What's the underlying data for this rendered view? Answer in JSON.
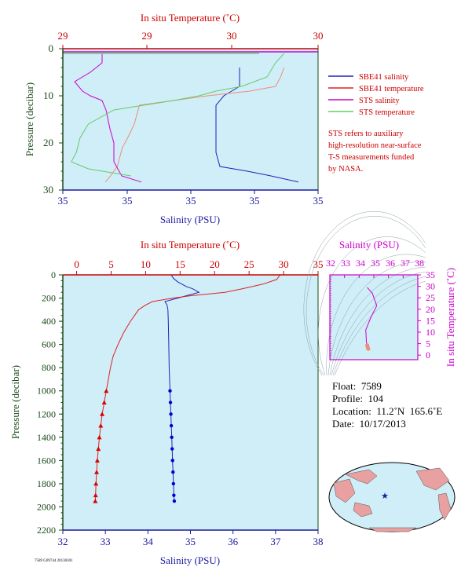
{
  "colors": {
    "plot_bg": "#cfeef7",
    "salinity_blue": "#2222bb",
    "temperature_red": "#dd2222",
    "sts_salinity": "#cc00cc",
    "sts_temperature": "#66cc66",
    "sts_temp_light": "#f08c7c",
    "axis_red": "#cc0000",
    "axis_blue": "#1a1aa0",
    "axis_magenta": "#cc00cc",
    "axis_green": "#1a4a1a"
  },
  "upper": {
    "top_axis_title": "In situ Temperature (˚C)",
    "bottom_axis_title": "Salinity (PSU)",
    "left_axis_title": "Pressure (decibar)",
    "top_ticks": [
      "29",
      "29",
      "30",
      "30"
    ],
    "bottom_ticks": [
      "35",
      "35",
      "35",
      "35",
      "35"
    ],
    "left_ticks": [
      "0",
      "10",
      "20",
      "30"
    ]
  },
  "legend": [
    {
      "label": "SBE41 salinity",
      "color": "#2222bb"
    },
    {
      "label": "SBE41 temperature",
      "color": "#dd2222"
    },
    {
      "label": "STS salinity",
      "color": "#cc00cc"
    },
    {
      "label": "STS temperature",
      "color": "#66cc66"
    }
  ],
  "note": [
    "STS refers to auxiliary",
    "high-resolution near-surface",
    "T-S measurements funded",
    "by NASA."
  ],
  "lower": {
    "top_axis_title": "In situ Temperature (˚C)",
    "bottom_axis_title": "Salinity (PSU)",
    "left_axis_title": "Pressure (decibar)"
  },
  "ts_inset": {
    "top_axis_title": "Salinity (PSU)",
    "right_axis_title": "In situ Temperature (˚C)",
    "top_ticks": [
      "32",
      "33",
      "34",
      "35",
      "36",
      "37",
      "38"
    ],
    "right_ticks": [
      "0",
      "5",
      "10",
      "15",
      "20",
      "25",
      "30",
      "35"
    ]
  },
  "info": {
    "float": "Float:  7589",
    "profile": "Profile:  104",
    "location": "Location:  11.2˚N  165.6˚E",
    "date": "Date:  10/17/2013"
  },
  "tiny_text": "7589 G09744 20130301",
  "chart_data": [
    {
      "type": "line",
      "title": "",
      "x_top_label": "In situ Temperature (˚C)",
      "x_bottom_label": "Salinity (PSU)",
      "ylabel": "Pressure (decibar)",
      "ylim": [
        30,
        0
      ],
      "series": [
        {
          "name": "SBE41 salinity",
          "pressure": [
            4,
            6,
            8,
            9,
            10,
            12,
            15,
            18,
            22,
            25,
            26,
            27,
            28.3
          ],
          "value": [
            35.0,
            35.0,
            35.0,
            34.98,
            34.96,
            34.94,
            34.94,
            34.94,
            34.94,
            34.95,
            35.02,
            35.08,
            35.15
          ]
        },
        {
          "name": "SBE41 temperature",
          "pressure": [
            4,
            6,
            8,
            9,
            10,
            12,
            16,
            19,
            21,
            25,
            26,
            27,
            28.3
          ],
          "value": [
            30.1,
            30.08,
            30.05,
            29.9,
            29.65,
            29.25,
            29.22,
            29.18,
            29.15,
            29.12,
            29.1,
            29.08,
            29.05
          ]
        },
        {
          "name": "STS salinity",
          "pressure": [
            1,
            3,
            5,
            7,
            9,
            10,
            11,
            13,
            17,
            20,
            24,
            27,
            28.3
          ],
          "value": [
            34.65,
            34.65,
            34.62,
            34.58,
            34.6,
            34.62,
            34.65,
            34.66,
            34.67,
            34.68,
            34.68,
            34.7,
            34.75
          ]
        },
        {
          "name": "STS temperature",
          "pressure": [
            1,
            3,
            6,
            8,
            9,
            10,
            11,
            13,
            16,
            19,
            22,
            24,
            25.5,
            27
          ],
          "value": [
            30.1,
            30.05,
            30.0,
            29.85,
            29.7,
            29.6,
            29.45,
            29.1,
            28.95,
            28.9,
            28.88,
            28.85,
            28.95,
            29.2
          ]
        }
      ]
    },
    {
      "type": "line",
      "title": "",
      "x_top_label": "In situ Temperature (˚C)",
      "x_top_ticks": [
        0,
        5,
        10,
        15,
        20,
        25,
        30,
        35
      ],
      "x_top_lim": [
        -2,
        35
      ],
      "x_bottom_label": "Salinity (PSU)",
      "x_bottom_ticks": [
        32,
        33,
        34,
        35,
        36,
        37,
        38
      ],
      "x_bottom_lim": [
        32,
        38
      ],
      "ylabel": "Pressure (decibar)",
      "y_ticks": [
        0,
        200,
        400,
        600,
        800,
        1000,
        1200,
        1400,
        1600,
        1800,
        2000,
        2200
      ],
      "ylim": [
        2200,
        0
      ],
      "series": [
        {
          "name": "Salinity",
          "unit": "PSU",
          "pressure": [
            0,
            30,
            60,
            100,
            120,
            150,
            190,
            230,
            260,
            300,
            400,
            600,
            800,
            1000,
            1100,
            1200,
            1300,
            1400,
            1500,
            1600,
            1700,
            1800,
            1900,
            1950
          ],
          "value": [
            34.55,
            34.6,
            34.7,
            34.9,
            35.05,
            35.2,
            34.8,
            34.4,
            34.45,
            34.47,
            34.48,
            34.49,
            34.5,
            34.52,
            34.53,
            34.54,
            34.55,
            34.56,
            34.57,
            34.58,
            34.59,
            34.6,
            34.61,
            34.62
          ]
        },
        {
          "name": "Temperature",
          "unit": "˚C",
          "pressure": [
            0,
            40,
            80,
            120,
            150,
            180,
            200,
            230,
            260,
            300,
            400,
            500,
            600,
            700,
            800,
            900,
            1000,
            1100,
            1200,
            1300,
            1400,
            1500,
            1600,
            1700,
            1800,
            1900,
            1950
          ],
          "value": [
            29.5,
            29.0,
            27.0,
            24.0,
            21.5,
            16.5,
            14.0,
            11.0,
            10.0,
            9.0,
            7.8,
            6.8,
            6.0,
            5.3,
            4.9,
            4.6,
            4.3,
            4.0,
            3.7,
            3.5,
            3.3,
            3.15,
            3.0,
            2.9,
            2.8,
            2.75,
            2.7
          ]
        }
      ]
    },
    {
      "type": "line",
      "title": "",
      "x_top_label": "Salinity (PSU)",
      "y_right_label": "In situ Temperature (˚C)",
      "xlim": [
        32,
        38
      ],
      "ylim": [
        -2,
        35
      ],
      "series": [
        {
          "name": "T-S",
          "x": [
            34.55,
            34.9,
            35.2,
            34.8,
            34.45,
            34.47,
            34.49,
            34.52,
            34.55,
            34.58,
            34.62
          ],
          "y": [
            29.5,
            27.0,
            21.5,
            16.5,
            11.0,
            9.0,
            6.0,
            4.3,
            3.5,
            3.0,
            2.7
          ]
        }
      ]
    }
  ]
}
